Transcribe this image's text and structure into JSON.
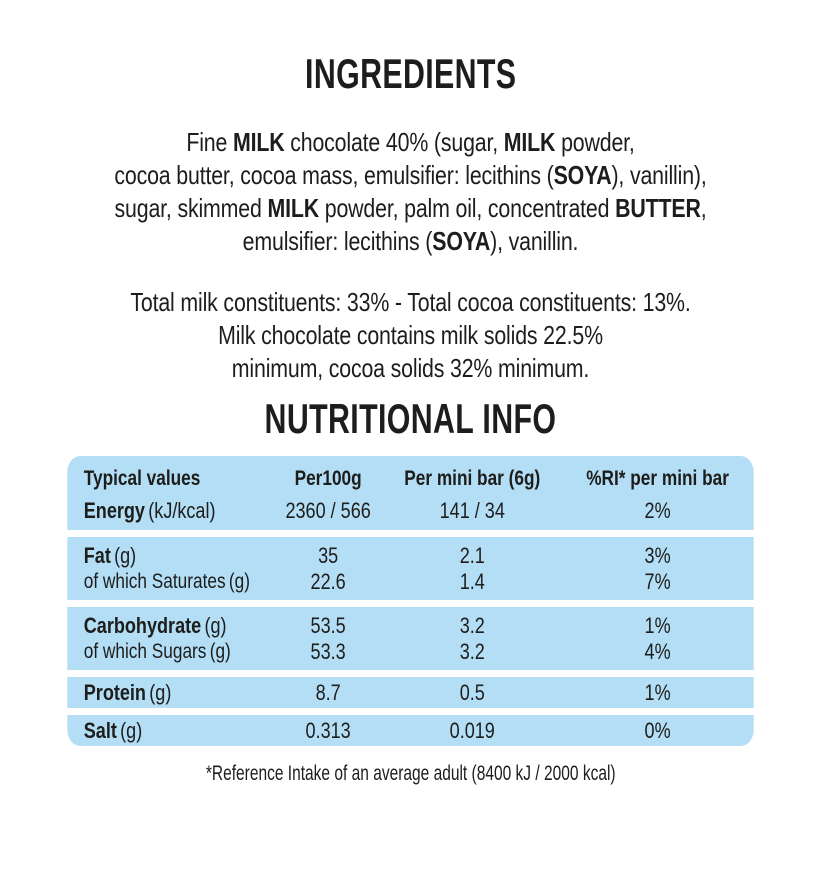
{
  "page": {
    "background": "#ffffff",
    "ink": "#1d1d1b",
    "table_bg": "#b3def5"
  },
  "ingredients": {
    "heading": "INGREDIENTS",
    "lines": [
      "Fine **MILK** chocolate 40% (sugar, **MILK** powder,",
      "cocoa butter, cocoa mass, emulsifier: lecithins (**SOYA**), vanillin),",
      "sugar, skimmed **MILK** powder, palm oil, concentrated **BUTTER**,",
      "emulsifier: lecithins (**SOYA**), vanillin."
    ],
    "constituents_lines": [
      "Total milk constituents: 33% - Total cocoa constituents: 13%.",
      "Milk chocolate contains milk solids 22.5%",
      "minimum, cocoa solids 32% minimum."
    ]
  },
  "nutrition": {
    "heading": "NUTRITIONAL INFO",
    "footnote": "*Reference Intake of an average adult (8400 kJ / 2000 kcal)",
    "table": {
      "headers": [
        "Typical values",
        "Per100g",
        "Per mini bar (6g)",
        "%RI* per mini bar"
      ],
      "rows": {
        "energy": {
          "name": "Energy",
          "unit": "(kJ/kcal)",
          "per_100g": "2360 / 566",
          "per_bar": "141 / 34",
          "ri": "2%"
        },
        "fat": {
          "name": "Fat",
          "unit": "(g)",
          "per_100g": "35",
          "per_bar": "2.1",
          "ri": "3%"
        },
        "saturates": {
          "name": "of which Saturates",
          "unit": "(g)",
          "per_100g": "22.6",
          "per_bar": "1.4",
          "ri": "7%"
        },
        "carbohydrate": {
          "name": "Carbohydrate",
          "unit": "(g)",
          "per_100g": "53.5",
          "per_bar": "3.2",
          "ri": "1%"
        },
        "sugars": {
          "name": "of which Sugars",
          "unit": "(g)",
          "per_100g": "53.3",
          "per_bar": "3.2",
          "ri": "4%"
        },
        "protein": {
          "name": "Protein",
          "unit": "(g)",
          "per_100g": "8.7",
          "per_bar": "0.5",
          "ri": "1%"
        },
        "salt": {
          "name": "Salt",
          "unit": "(g)",
          "per_100g": "0.313",
          "per_bar": "0.019",
          "ri": "0%"
        }
      }
    }
  }
}
